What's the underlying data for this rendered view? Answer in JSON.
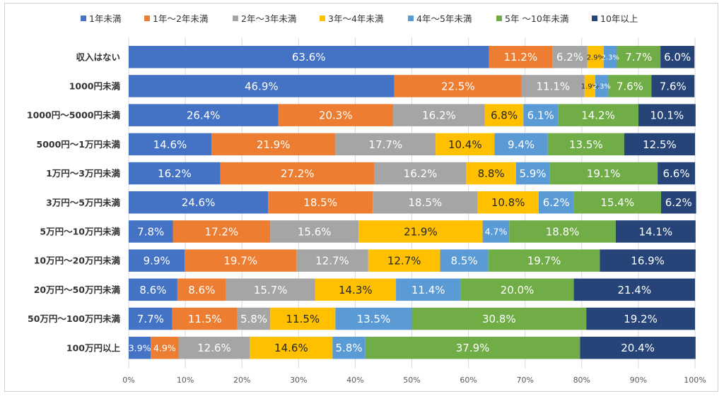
{
  "chart_data": {
    "type": "bar",
    "orientation": "horizontal",
    "stacked": "percent",
    "categories": [
      "収入はない",
      "1000円未満",
      "1000円～5000円未満",
      "5000円～1万円未満",
      "1万円～3万円未満",
      "3万円～5万円未満",
      "5万円～10万円未満",
      "10万円～20万円未満",
      "20万円～50万円未満",
      "50万円～100万円未満",
      "100万円以上"
    ],
    "series": [
      {
        "name": "1年未満",
        "color": "#4472C4",
        "values": [
          63.6,
          46.9,
          26.4,
          14.6,
          16.2,
          24.6,
          7.8,
          9.9,
          8.6,
          7.7,
          3.9
        ]
      },
      {
        "name": "1年～2年未満",
        "color": "#ED7D31",
        "values": [
          11.2,
          22.5,
          20.3,
          21.9,
          27.2,
          18.5,
          17.2,
          19.7,
          8.6,
          11.5,
          4.9
        ]
      },
      {
        "name": "2年～3年未満",
        "color": "#A5A5A5",
        "values": [
          6.2,
          11.1,
          16.2,
          17.7,
          16.2,
          18.5,
          15.6,
          12.7,
          15.7,
          5.8,
          12.6
        ]
      },
      {
        "name": "3年～4年未満",
        "color": "#FFC000",
        "values": [
          2.9,
          1.9,
          6.8,
          10.4,
          8.8,
          10.8,
          21.9,
          12.7,
          14.3,
          11.5,
          14.6
        ]
      },
      {
        "name": "4年～5年未満",
        "color": "#5B9BD5",
        "values": [
          2.3,
          2.3,
          6.1,
          9.4,
          5.9,
          6.2,
          4.7,
          8.5,
          11.4,
          13.5,
          5.8
        ]
      },
      {
        "name": "5年 ～10年未満",
        "color": "#70AD47",
        "values": [
          7.7,
          7.6,
          14.2,
          13.5,
          19.1,
          15.4,
          18.8,
          19.7,
          20.0,
          30.8,
          37.9
        ]
      },
      {
        "name": "10年以上",
        "color": "#264478",
        "values": [
          6.0,
          7.6,
          10.1,
          12.5,
          6.6,
          6.2,
          14.1,
          16.9,
          21.4,
          19.2,
          20.4
        ]
      }
    ],
    "xlim": [
      0,
      100
    ],
    "x_ticks": [
      "0%",
      "10%",
      "20%",
      "30%",
      "40%",
      "50%",
      "60%",
      "70%",
      "80%",
      "90%",
      "100%"
    ],
    "value_suffix": "%",
    "legend_position": "top",
    "grid": true
  }
}
